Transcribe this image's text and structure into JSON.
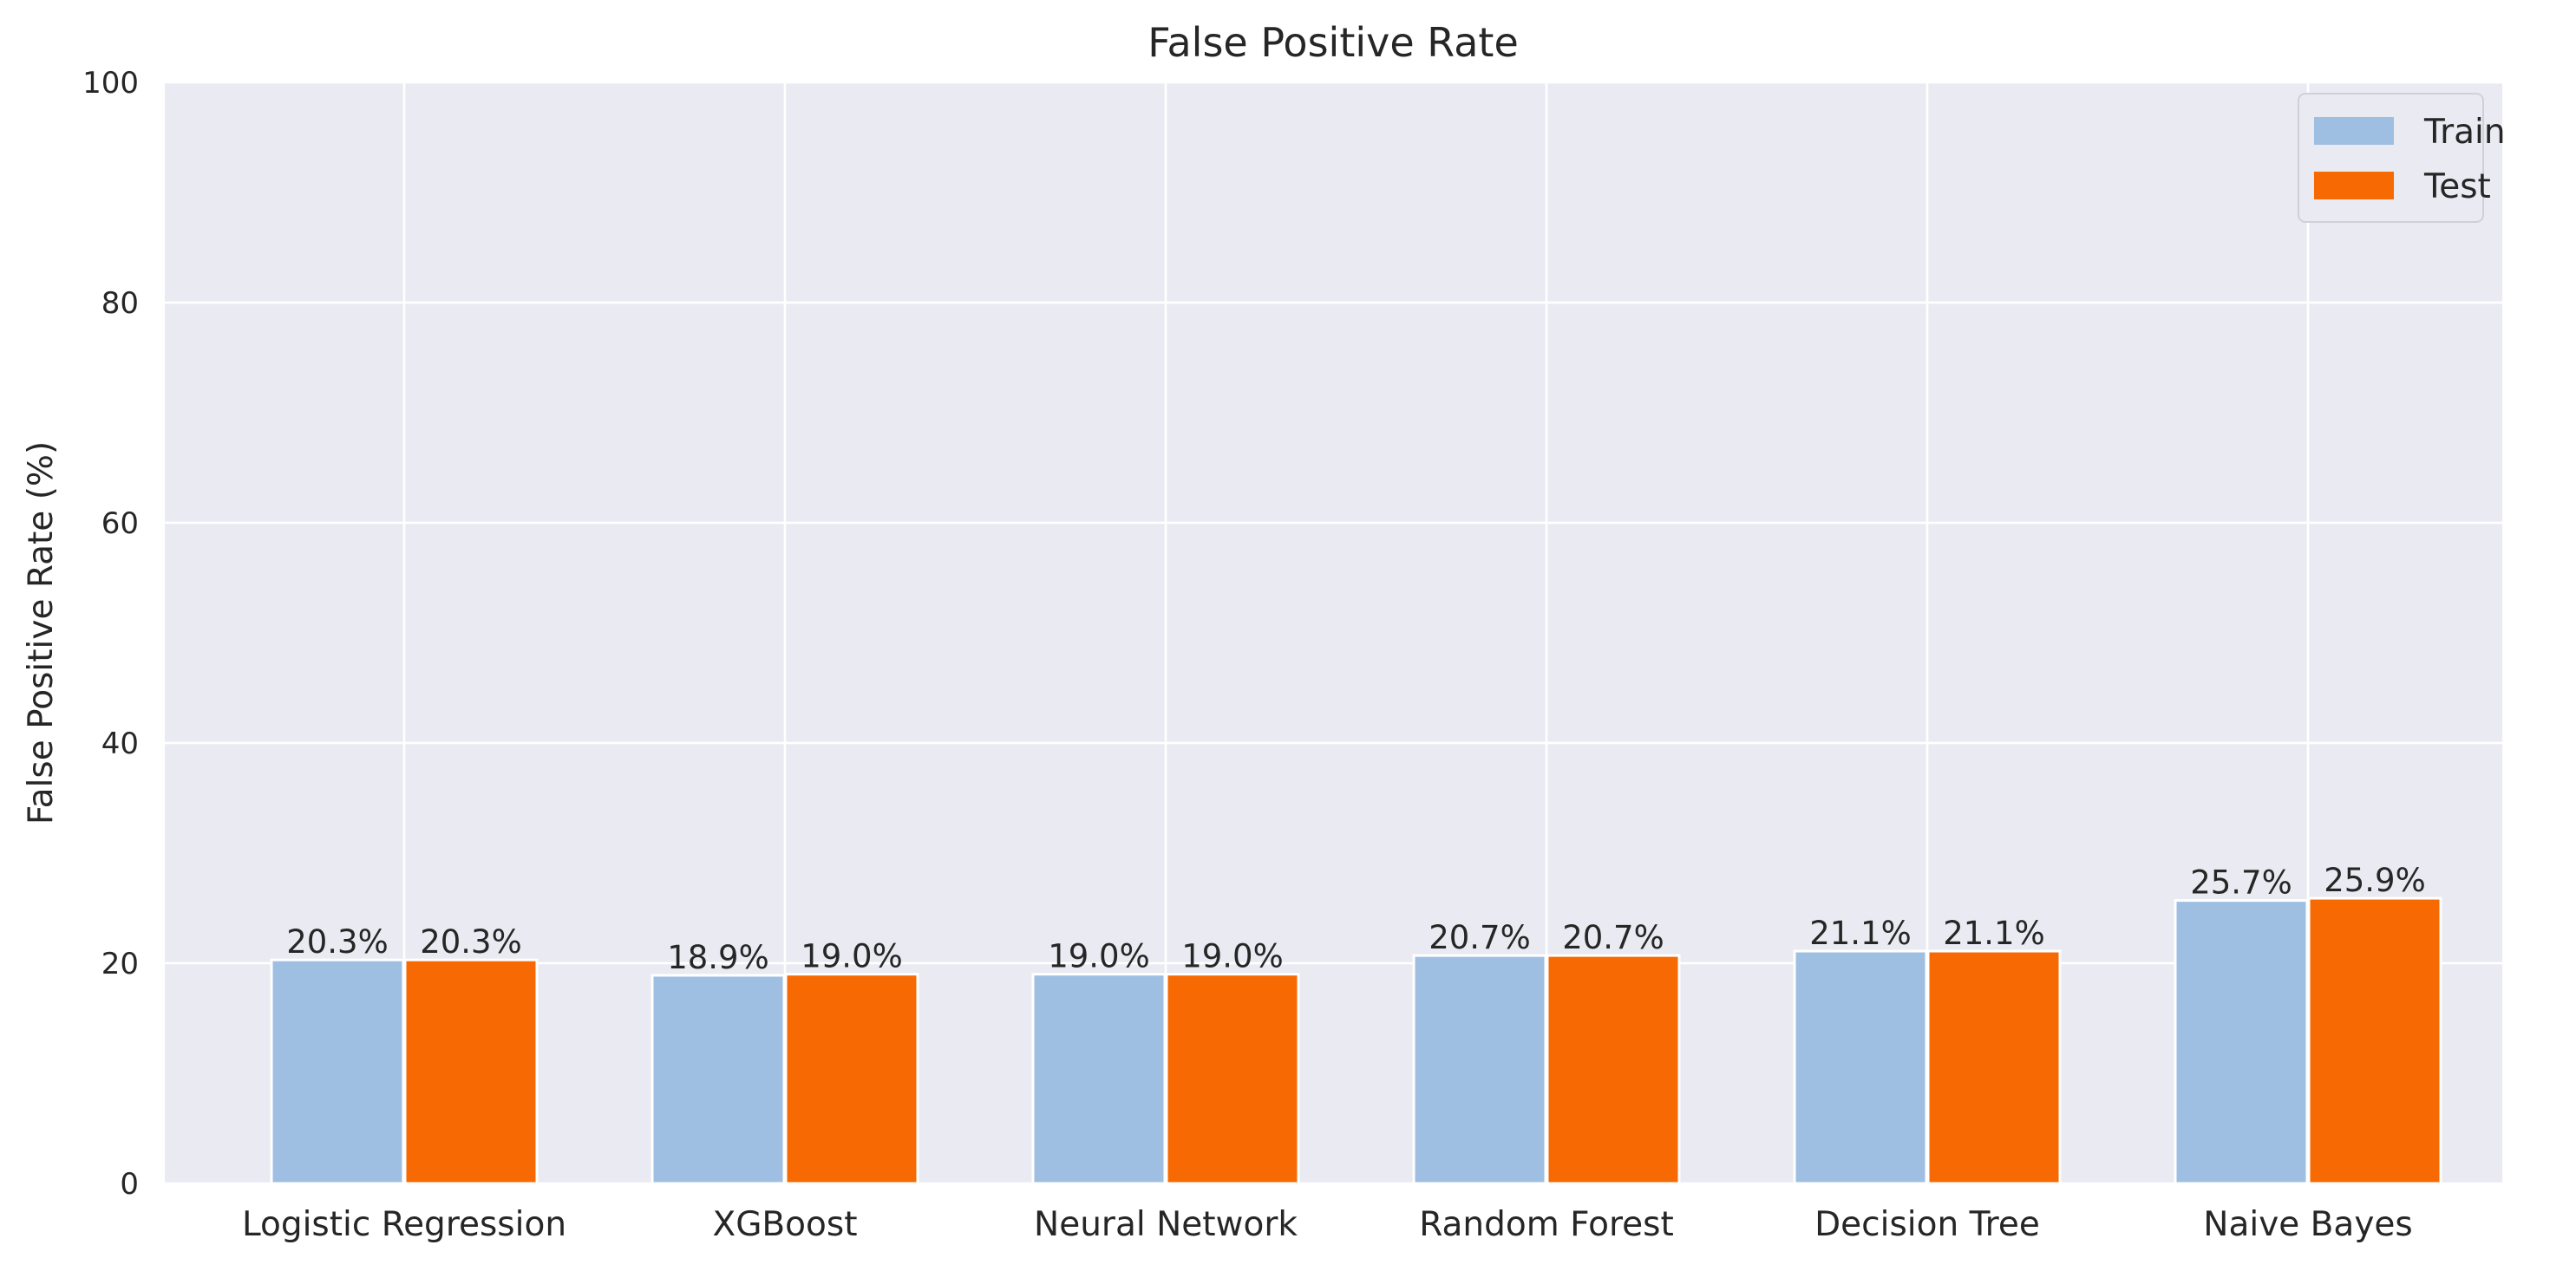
{
  "chart_data": {
    "type": "bar",
    "title": "False Positive Rate",
    "xlabel": "",
    "ylabel": "False Positive Rate (%)",
    "ylim": [
      0,
      100
    ],
    "yticks": [
      0,
      20,
      40,
      60,
      80,
      100
    ],
    "categories": [
      "Logistic Regression",
      "XGBoost",
      "Neural Network",
      "Random Forest",
      "Decision Tree",
      "Naive Bayes"
    ],
    "series": [
      {
        "name": "Train",
        "color": "#9fbfe2",
        "values": [
          20.3,
          18.9,
          19.0,
          20.7,
          21.1,
          25.7
        ],
        "labels": [
          "20.3%",
          "18.9%",
          "19.0%",
          "20.7%",
          "21.1%",
          "25.7%"
        ]
      },
      {
        "name": "Test",
        "color": "#f76a03",
        "values": [
          20.3,
          19.0,
          19.0,
          20.7,
          21.1,
          25.9
        ],
        "labels": [
          "20.3%",
          "19.0%",
          "19.0%",
          "20.7%",
          "21.1%",
          "25.9%"
        ]
      }
    ],
    "grid": true,
    "legend_position": "top-right",
    "background_color": "#eaeaf2",
    "grid_color": "#ffffff"
  }
}
